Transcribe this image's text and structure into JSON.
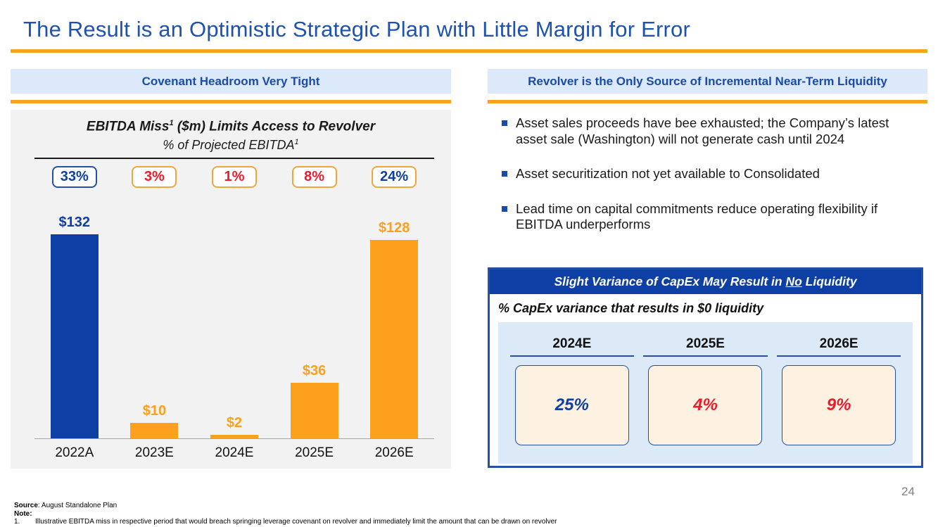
{
  "slide": {
    "title": "The Result is an Optimistic Strategic Plan with Little Margin for Error",
    "page_number": "24",
    "accent_orange": "#f9a21d",
    "accent_blue": "#0d3fa5",
    "accent_red": "#ec1c2c"
  },
  "left": {
    "header": "Covenant Headroom Very Tight",
    "chart_heading": {
      "title_pre": "EBITDA Miss",
      "title_sup": "1",
      "title_post": " ($m) Limits Access to Revolver",
      "subtitle_pre": "% of Projected EBITDA",
      "subtitle_sup": "1"
    }
  },
  "chart_data": {
    "type": "bar",
    "title": "EBITDA Miss ($m) Limits Access to Revolver",
    "subtitle": "% of Projected EBITDA",
    "categories": [
      "2022A",
      "2023E",
      "2024E",
      "2025E",
      "2026E"
    ],
    "values": [
      132,
      10,
      2,
      36,
      128
    ],
    "value_labels": [
      "$132",
      "$10",
      "$2",
      "$36",
      "$128"
    ],
    "pct_of_ebitda_labels": [
      "33%",
      "3%",
      "1%",
      "8%",
      "24%"
    ],
    "bar_colors": [
      "#0d3fa5",
      "#fca01e",
      "#fca01e",
      "#fca01e",
      "#fca01e"
    ],
    "pct_text_colors": [
      "#0d3fa5",
      "#ec1c2c",
      "#ec1c2c",
      "#ec1c2c",
      "#0d3fa5"
    ],
    "pct_border_colors": [
      "#2450a5",
      "#f0a638",
      "#f0a638",
      "#f0a638",
      "#f0a638"
    ],
    "ylim": [
      0,
      140
    ],
    "grid": false,
    "legend": false
  },
  "right": {
    "header": "Revolver is the Only Source of Incremental Near-Term Liquidity",
    "bullets": [
      "Asset sales proceeds have bee exhausted; the Company’s latest asset sale (Washington) will not generate cash until 2024",
      "Asset securitization not yet available to Consolidated",
      "Lead time on capital commitments reduce operating flexibility if EBITDA underperforms"
    ],
    "capex": {
      "header_pre": "Slight Variance of CapEx May Result in ",
      "header_no": "No",
      "header_post": " Liquidity",
      "sub": "% CapEx variance that results in $0 liquidity",
      "columns": [
        {
          "year": "2024E",
          "value": "25%",
          "color": "#0d3fa5"
        },
        {
          "year": "2025E",
          "value": "4%",
          "color": "#ec1c2c"
        },
        {
          "year": "2026E",
          "value": "9%",
          "color": "#ec1c2c"
        }
      ]
    }
  },
  "footer": {
    "source_label": "Source",
    "source_text": ": August Standalone Plan",
    "note_label": "Note:",
    "note_number": "1.",
    "note_text": "Illustrative EBITDA miss in respective period that would breach springing leverage covenant on revolver and immediately limit the amount that can be drawn on revolver"
  }
}
